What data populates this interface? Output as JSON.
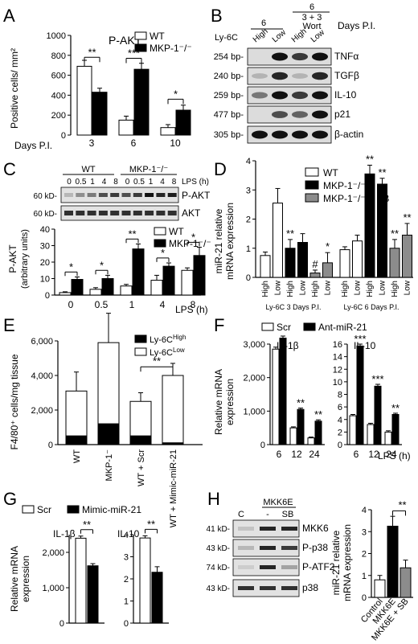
{
  "panels": {
    "A": {
      "letter": "A",
      "title": "P-AKT",
      "ylabel": "Positive cells/ mm²",
      "xlabel": "Days P.I.",
      "legend": [
        "WT",
        "MKP-1⁻/⁻"
      ],
      "sig": [
        "**",
        "***",
        "*"
      ]
    },
    "B": {
      "letter": "B",
      "ly6c": "Ly-6C",
      "days_label": "Days P.I.",
      "group1": "6",
      "group2_line1": "6",
      "group2_line2": "3 + 3",
      "group2_line3": "Wort",
      "lanes": [
        "High",
        "Low",
        "High",
        "Low"
      ],
      "rows": [
        {
          "bp": "254 bp-",
          "name": "TNFα"
        },
        {
          "bp": "240 bp-",
          "name": "TGFβ"
        },
        {
          "bp": "259 bp-",
          "name": "IL-10"
        },
        {
          "bp": "477 bp-",
          "name": "p21"
        },
        {
          "bp": "305 bp-",
          "name": "β-actin"
        }
      ]
    },
    "C": {
      "letter": "C",
      "wt": "WT",
      "ko": "MKP-1⁻/⁻",
      "timepoints": [
        "0",
        "0.5",
        "1",
        "4",
        "8",
        "0",
        "0.5",
        "1",
        "4",
        "8"
      ],
      "lps_h": "LPS (h)",
      "kd1": "60 kD-",
      "kd2": "60 kD-",
      "blot1": "P-AKT",
      "blot2": "AKT",
      "ylabel1": "P-AKT",
      "ylabel2": "(arbitrary units)",
      "xlabel": "LPS (h)",
      "legend": [
        "WT",
        "MKP-1⁻/⁻"
      ],
      "sig": [
        "*",
        "*",
        "**",
        "*",
        "*"
      ]
    },
    "D": {
      "letter": "D",
      "ylabel1": "miR-21 relative",
      "ylabel2": "mRNA expression",
      "legend": [
        "WT",
        "MKP-1⁻/⁻",
        "MKP-1⁻/⁻ + SB"
      ],
      "group1": "Ly-6C 3 Days P.I.",
      "group2": "Ly-6C 6 Days P.I.",
      "hash": "#"
    },
    "E": {
      "letter": "E",
      "ylabel": "F4/80⁺ cells/mg tissue",
      "legend": [
        "Ly-6CHigh",
        "Ly-6CLow"
      ],
      "sig": "**"
    },
    "F": {
      "letter": "F",
      "ylabel1": "Relative mRNA",
      "ylabel2": "expression",
      "legend": [
        "Scr",
        "Ant-miR-21"
      ],
      "sub1": "IL-1β",
      "sub2": "IL-10",
      "xlabel": "LPS (h)"
    },
    "G": {
      "letter": "G",
      "ylabel1": "Relative mRNA",
      "ylabel2": "expression",
      "legend": [
        "Scr",
        "Mimic-miR-21"
      ],
      "sub1": "IL-1β",
      "sub2": "IL-10",
      "sig": [
        "**",
        "**"
      ]
    },
    "H": {
      "letter": "H",
      "header": "MKK6E",
      "lanes": [
        "C",
        "-",
        "SB"
      ],
      "rows": [
        {
          "kd": "41 kD-",
          "name": "MKK6"
        },
        {
          "kd": "43 kD-",
          "name": "P-p38"
        },
        {
          "kd": "74 kD-",
          "name": "P-ATF2"
        },
        {
          "kd": "43 kD-",
          "name": "p38"
        }
      ],
      "ylabel1": "miR-21 relative",
      "ylabel2": "mRNA expression",
      "sig": "**"
    }
  },
  "colors": {
    "wt": "#ffffff",
    "ko": "#000000",
    "sb": "#8c8c8c"
  },
  "chart_data": [
    {
      "panel": "A",
      "type": "bar",
      "categories": [
        "3",
        "6",
        "10"
      ],
      "ylim": [
        0,
        1000
      ],
      "yticks": [
        0,
        200,
        400,
        600,
        800,
        1000
      ],
      "series": [
        {
          "name": "WT",
          "values": [
            690,
            150,
            75
          ],
          "errors": [
            60,
            40,
            30
          ]
        },
        {
          "name": "MKP-1⁻/⁻",
          "values": [
            430,
            660,
            250
          ],
          "errors": [
            40,
            60,
            50
          ]
        }
      ]
    },
    {
      "panel": "C",
      "type": "bar",
      "categories": [
        "0",
        "0.5",
        "1",
        "4",
        "8"
      ],
      "ylim": [
        0,
        40
      ],
      "yticks": [
        0,
        10,
        20,
        30,
        40
      ],
      "series": [
        {
          "name": "WT",
          "values": [
            1.5,
            3.5,
            5.5,
            9,
            15
          ],
          "errors": [
            0.5,
            1,
            1,
            3,
            1.5
          ]
        },
        {
          "name": "MKP-1⁻/⁻",
          "values": [
            9.5,
            10,
            28,
            17.5,
            24
          ],
          "errors": [
            1.5,
            2,
            3,
            2,
            5
          ]
        }
      ]
    },
    {
      "panel": "D",
      "type": "bar",
      "categories": [
        "High",
        "Low",
        "High",
        "Low",
        "High",
        "Low",
        "High",
        "Low",
        "High",
        "Low",
        "High",
        "Low"
      ],
      "ylim": [
        0,
        4
      ],
      "yticks": [
        0,
        1,
        2,
        3,
        4
      ],
      "values": [
        0.75,
        2.55,
        1.0,
        1.2,
        0.15,
        0.5,
        0.95,
        1.25,
        3.55,
        3.2,
        1.0,
        1.45
      ],
      "errors": [
        0.12,
        0.5,
        0.3,
        0.3,
        0.1,
        0.35,
        0.1,
        0.2,
        0.3,
        0.2,
        0.3,
        0.4
      ],
      "series_index": [
        0,
        0,
        1,
        1,
        2,
        2,
        0,
        0,
        1,
        1,
        2,
        2
      ],
      "stars": [
        "",
        "",
        "**",
        "",
        "#",
        "*",
        "",
        "",
        "**",
        "**",
        "**",
        "**"
      ]
    },
    {
      "panel": "E",
      "type": "bar",
      "categories": [
        "WT",
        "MKP-1⁻",
        "WT + Scr",
        "WT + Mimic-miR-21"
      ],
      "ylim": [
        0,
        6000
      ],
      "yticks": [
        0,
        2000,
        4000,
        6000
      ],
      "series": [
        {
          "name": "Ly-6CHigh",
          "values": [
            500,
            1200,
            500,
            100
          ]
        },
        {
          "name": "Ly-6CLow",
          "values": [
            2600,
            4700,
            2000,
            3900
          ]
        }
      ],
      "errors": [
        1100,
        1700,
        500,
        700
      ]
    },
    {
      "panel": "F",
      "type": "bar",
      "subplots": [
        {
          "name": "IL-1β",
          "categories": [
            "6",
            "12",
            "24"
          ],
          "ylim": [
            0,
            3000
          ],
          "yticks": [
            0,
            1000,
            2000,
            3000
          ],
          "series": [
            {
              "name": "Scr",
              "values": [
                2850,
                500,
                200
              ],
              "errors": [
                60,
                30,
                25
              ]
            },
            {
              "name": "Ant-miR-21",
              "values": [
                3180,
                1050,
                700
              ],
              "errors": [
                60,
                40,
                40
              ]
            }
          ],
          "stars": [
            "",
            "**",
            "**"
          ]
        },
        {
          "name": "IL-10",
          "categories": [
            "6",
            "12",
            "24"
          ],
          "ylim": [
            0,
            16
          ],
          "yticks": [
            0,
            2,
            4,
            6,
            8,
            10,
            12,
            14,
            16
          ],
          "series": [
            {
              "name": "Scr",
              "values": [
                4.6,
                3.2,
                2.0
              ],
              "errors": [
                0.2,
                0.2,
                0.2
              ]
            },
            {
              "name": "Ant-miR-21",
              "values": [
                15.7,
                9.3,
                4.8
              ],
              "errors": [
                0.3,
                0.3,
                0.2
              ]
            }
          ],
          "stars": [
            "***",
            "***",
            "**"
          ]
        }
      ]
    },
    {
      "panel": "G",
      "type": "bar",
      "subplots": [
        {
          "name": "IL-1β",
          "ylim": [
            0,
            2500
          ],
          "yticks": [
            0,
            1000,
            2000
          ],
          "series": [
            {
              "name": "Scr",
              "values": [
                2400
              ],
              "errors": [
                60
              ]
            },
            {
              "name": "Mimic-miR-21",
              "values": [
                1620
              ],
              "errors": [
                60
              ]
            }
          ]
        },
        {
          "name": "IL-10",
          "ylim": [
            0,
            4
          ],
          "yticks": [
            0,
            1,
            2,
            3,
            4
          ],
          "series": [
            {
              "name": "Scr",
              "values": [
                3.85
              ],
              "errors": [
                0.1
              ]
            },
            {
              "name": "Mimic-miR-21",
              "values": [
                2.3
              ],
              "errors": [
                0.25
              ]
            }
          ]
        }
      ]
    },
    {
      "panel": "H",
      "type": "bar",
      "categories": [
        "Control",
        "MKK6E",
        "MKK6E + SB"
      ],
      "ylim": [
        0,
        4
      ],
      "yticks": [
        0,
        1,
        2,
        3,
        4
      ],
      "values": [
        0.8,
        3.25,
        1.35
      ],
      "errors": [
        0.2,
        0.45,
        0.35
      ]
    }
  ]
}
